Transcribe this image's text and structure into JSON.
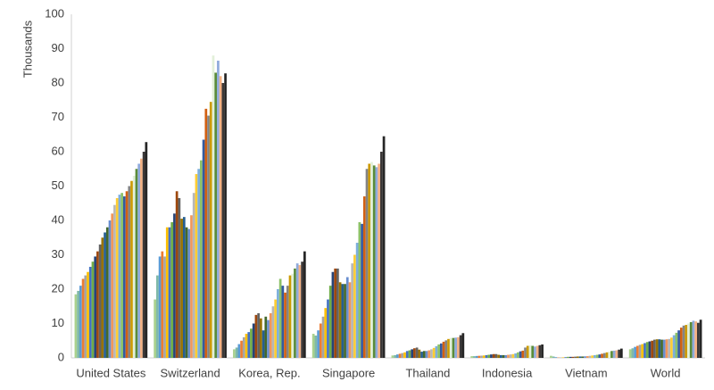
{
  "chart_data": {
    "type": "bar",
    "y_label": "Thousands",
    "categories": [
      "United States",
      "Switzerland",
      "Korea, Rep.",
      "Singapore",
      "Thailand",
      "Indonesia",
      "Vietnam",
      "World"
    ],
    "ylim": [
      0,
      100
    ],
    "yticks": [
      0,
      10,
      20,
      30,
      40,
      50,
      60,
      70,
      80,
      90,
      100
    ],
    "grid": false,
    "series": [
      {
        "color": "#a9d18e",
        "values": [
          18.5,
          17,
          2.5,
          7,
          0.7,
          0.5,
          0.6,
          2.5
        ]
      },
      {
        "color": "#7fb9a8",
        "values": [
          19.5,
          24,
          3,
          6.5,
          0.8,
          0.5,
          0.4,
          2.8
        ]
      },
      {
        "color": "#5b9bd5",
        "values": [
          21,
          29.5,
          4,
          8,
          1,
          0.55,
          0.2,
          3.2
        ]
      },
      {
        "color": "#ed7d31",
        "values": [
          23,
          31,
          5,
          10,
          1.2,
          0.6,
          0.1,
          3.5
        ]
      },
      {
        "color": "#a5a5a5",
        "values": [
          24,
          29.5,
          6,
          12,
          1.4,
          0.65,
          0.1,
          3.8
        ]
      },
      {
        "color": "#ffc000",
        "values": [
          25,
          38,
          7,
          14.5,
          1.6,
          0.7,
          0.15,
          4
        ]
      },
      {
        "color": "#4472c4",
        "values": [
          26.5,
          38,
          7.5,
          17,
          2,
          0.8,
          0.2,
          4.3
        ]
      },
      {
        "color": "#70ad47",
        "values": [
          28,
          39.5,
          8.5,
          21,
          2.2,
          0.9,
          0.3,
          4.6
        ]
      },
      {
        "color": "#264478",
        "values": [
          29.5,
          42,
          10,
          25,
          2.5,
          1,
          0.3,
          4.8
        ]
      },
      {
        "color": "#9e480e",
        "values": [
          31,
          48.5,
          12.5,
          26,
          2.8,
          1.1,
          0.3,
          5
        ]
      },
      {
        "color": "#636363",
        "values": [
          33,
          46.5,
          13,
          26,
          3,
          1.1,
          0.35,
          5.3
        ]
      },
      {
        "color": "#997300",
        "values": [
          35,
          40.5,
          11.5,
          22,
          2.4,
          0.9,
          0.4,
          5.4
        ]
      },
      {
        "color": "#255e91",
        "values": [
          36.5,
          41,
          8,
          21.5,
          1.8,
          0.8,
          0.4,
          5.4
        ]
      },
      {
        "color": "#43682b",
        "values": [
          38,
          38,
          12,
          21.5,
          2,
          0.8,
          0.4,
          5.3
        ]
      },
      {
        "color": "#698ed0",
        "values": [
          40,
          37.5,
          11,
          23.5,
          2,
          0.8,
          0.45,
          5.3
        ]
      },
      {
        "color": "#f1975a",
        "values": [
          42,
          41.5,
          13,
          22,
          2.2,
          0.9,
          0.5,
          5.4
        ]
      },
      {
        "color": "#b7b7b7",
        "values": [
          44.5,
          48,
          15,
          27.5,
          2.5,
          1,
          0.6,
          5.5
        ]
      },
      {
        "color": "#ffcd33",
        "values": [
          46.5,
          53.5,
          17,
          30,
          2.9,
          1.1,
          0.7,
          5.9
        ]
      },
      {
        "color": "#7cafdd",
        "values": [
          47.5,
          55,
          20,
          33.5,
          3.4,
          1.3,
          0.8,
          6.6
        ]
      },
      {
        "color": "#8cc168",
        "values": [
          48,
          57.5,
          23,
          39.5,
          3.9,
          1.6,
          0.9,
          7.3
        ]
      },
      {
        "color": "#335aa1",
        "values": [
          47,
          63.5,
          21,
          39,
          4.2,
          1.9,
          1,
          8
        ]
      },
      {
        "color": "#d26012",
        "values": [
          48.5,
          72.5,
          19,
          47,
          4.7,
          2.1,
          1.2,
          8.8
        ]
      },
      {
        "color": "#848484",
        "values": [
          50,
          70.5,
          21,
          55,
          5.1,
          3,
          1.4,
          9.4
        ]
      },
      {
        "color": "#cc9a00",
        "values": [
          51.5,
          74.5,
          24,
          56.5,
          5.5,
          3.5,
          1.6,
          9.6
        ]
      },
      {
        "color": "#e2f0d9",
        "values": [
          53,
          88,
          24.5,
          57,
          5.8,
          3.6,
          1.8,
          10
        ]
      },
      {
        "color": "#5a8b39",
        "values": [
          55,
          83,
          26,
          56,
          5.8,
          3.5,
          2,
          10.4
        ]
      },
      {
        "color": "#8faadc",
        "values": [
          56.5,
          86.5,
          27.5,
          55.5,
          5.9,
          3.3,
          2.1,
          10.8
        ]
      },
      {
        "color": "#f4b183",
        "values": [
          58,
          82,
          27,
          56.5,
          6,
          3.5,
          2.2,
          10.6
        ]
      },
      {
        "color": "#3b3838",
        "values": [
          60,
          80,
          28,
          60,
          6.6,
          3.7,
          2.4,
          10.2
        ]
      },
      {
        "color": "#262626",
        "values": [
          62.8,
          82.8,
          31,
          64.5,
          7.2,
          3.9,
          2.7,
          11.1
        ]
      }
    ]
  }
}
